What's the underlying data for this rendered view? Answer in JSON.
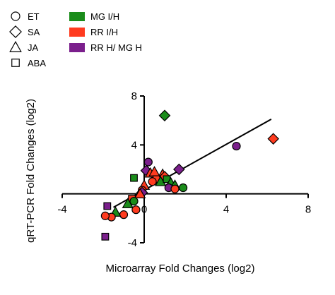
{
  "chart_data": {
    "type": "scatter",
    "title": "",
    "xlabel": "Microarray Fold Changes (log2)",
    "ylabel": "qRT-PCR Fold Changes (log2)",
    "xlim": [
      -4,
      8
    ],
    "ylim": [
      -4,
      8
    ],
    "xticks": [
      -4,
      0,
      4,
      8
    ],
    "yticks": [
      -4,
      0,
      4,
      8
    ],
    "x_tick_labels": [
      "-4",
      "0",
      "4",
      "8"
    ],
    "y_tick_labels": [
      "-4",
      "",
      "4",
      "8"
    ],
    "grid": false,
    "legend_position": "top-left",
    "shape_legend": [
      {
        "label": "ET",
        "shape": "circle"
      },
      {
        "label": "SA",
        "shape": "diamond"
      },
      {
        "label": "JA",
        "shape": "triangle"
      },
      {
        "label": "ABA",
        "shape": "square"
      }
    ],
    "color_legend": [
      {
        "label": "MG I/H",
        "color": "#1a8c1a"
      },
      {
        "label": "RR I/H",
        "color": "#ff3b1f"
      },
      {
        "label": "RR H/ MG H",
        "color": "#7b1f8c"
      }
    ],
    "regression_line": {
      "x": [
        -1.5,
        6.2
      ],
      "y": [
        -1.1,
        6.1
      ]
    },
    "points": [
      {
        "x": 4.5,
        "y": 3.9,
        "shape": "circle",
        "color": "#7b1f8c"
      },
      {
        "x": 6.3,
        "y": 4.5,
        "shape": "diamond",
        "color": "#ff3b1f"
      },
      {
        "x": 1.0,
        "y": 6.4,
        "shape": "diamond",
        "color": "#1a8c1a"
      },
      {
        "x": 1.7,
        "y": 2.0,
        "shape": "diamond",
        "color": "#7b1f8c"
      },
      {
        "x": 0.2,
        "y": 2.6,
        "shape": "circle",
        "color": "#7b1f8c"
      },
      {
        "x": 0.1,
        "y": 1.9,
        "shape": "diamond",
        "color": "#7b1f8c"
      },
      {
        "x": 0.3,
        "y": 1.7,
        "shape": "triangle",
        "color": "#ff3b1f"
      },
      {
        "x": 0.5,
        "y": 1.8,
        "shape": "triangle",
        "color": "#ff3b1f"
      },
      {
        "x": 0.9,
        "y": 1.6,
        "shape": "triangle",
        "color": "#ff3b1f"
      },
      {
        "x": 0.6,
        "y": 1.2,
        "shape": "square",
        "color": "#ff3b1f"
      },
      {
        "x": 1.0,
        "y": 1.4,
        "shape": "diamond",
        "color": "#ff3b1f"
      },
      {
        "x": -0.5,
        "y": 1.3,
        "shape": "square",
        "color": "#1a8c1a"
      },
      {
        "x": 0.8,
        "y": 1.0,
        "shape": "triangle",
        "color": "#1a8c1a"
      },
      {
        "x": 1.1,
        "y": 1.2,
        "shape": "square",
        "color": "#1a8c1a"
      },
      {
        "x": 1.3,
        "y": 0.9,
        "shape": "triangle",
        "color": "#1a8c1a"
      },
      {
        "x": 1.5,
        "y": 0.7,
        "shape": "triangle",
        "color": "#1a8c1a"
      },
      {
        "x": 1.2,
        "y": 0.5,
        "shape": "circle",
        "color": "#7b1f8c"
      },
      {
        "x": 1.5,
        "y": 0.4,
        "shape": "circle",
        "color": "#ff3b1f"
      },
      {
        "x": 1.9,
        "y": 0.5,
        "shape": "circle",
        "color": "#1a8c1a"
      },
      {
        "x": 0.4,
        "y": 1.0,
        "shape": "circle",
        "color": "#ff3b1f"
      },
      {
        "x": 0.0,
        "y": 0.7,
        "shape": "triangle",
        "color": "#ff3b1f"
      },
      {
        "x": -0.1,
        "y": 0.3,
        "shape": "circle",
        "color": "#ff3b1f"
      },
      {
        "x": -0.1,
        "y": 0.1,
        "shape": "diamond",
        "color": "#7b1f8c"
      },
      {
        "x": -0.2,
        "y": 0.0,
        "shape": "triangle",
        "color": "#ff3b1f"
      },
      {
        "x": -0.6,
        "y": -0.4,
        "shape": "square",
        "color": "#ff3b1f"
      },
      {
        "x": -0.5,
        "y": -0.6,
        "shape": "circle",
        "color": "#1a8c1a"
      },
      {
        "x": -0.8,
        "y": -0.8,
        "shape": "triangle",
        "color": "#1a8c1a"
      },
      {
        "x": -0.4,
        "y": -1.3,
        "shape": "circle",
        "color": "#ff3b1f"
      },
      {
        "x": -1.0,
        "y": -1.7,
        "shape": "circle",
        "color": "#ff3b1f"
      },
      {
        "x": -1.4,
        "y": -1.5,
        "shape": "triangle",
        "color": "#1a8c1a"
      },
      {
        "x": -1.6,
        "y": -1.9,
        "shape": "circle",
        "color": "#ff3b1f"
      },
      {
        "x": -1.9,
        "y": -1.8,
        "shape": "circle",
        "color": "#ff3b1f"
      },
      {
        "x": -1.8,
        "y": -1.0,
        "shape": "square",
        "color": "#7b1f8c"
      },
      {
        "x": -1.9,
        "y": -3.5,
        "shape": "square",
        "color": "#7b1f8c"
      }
    ]
  }
}
